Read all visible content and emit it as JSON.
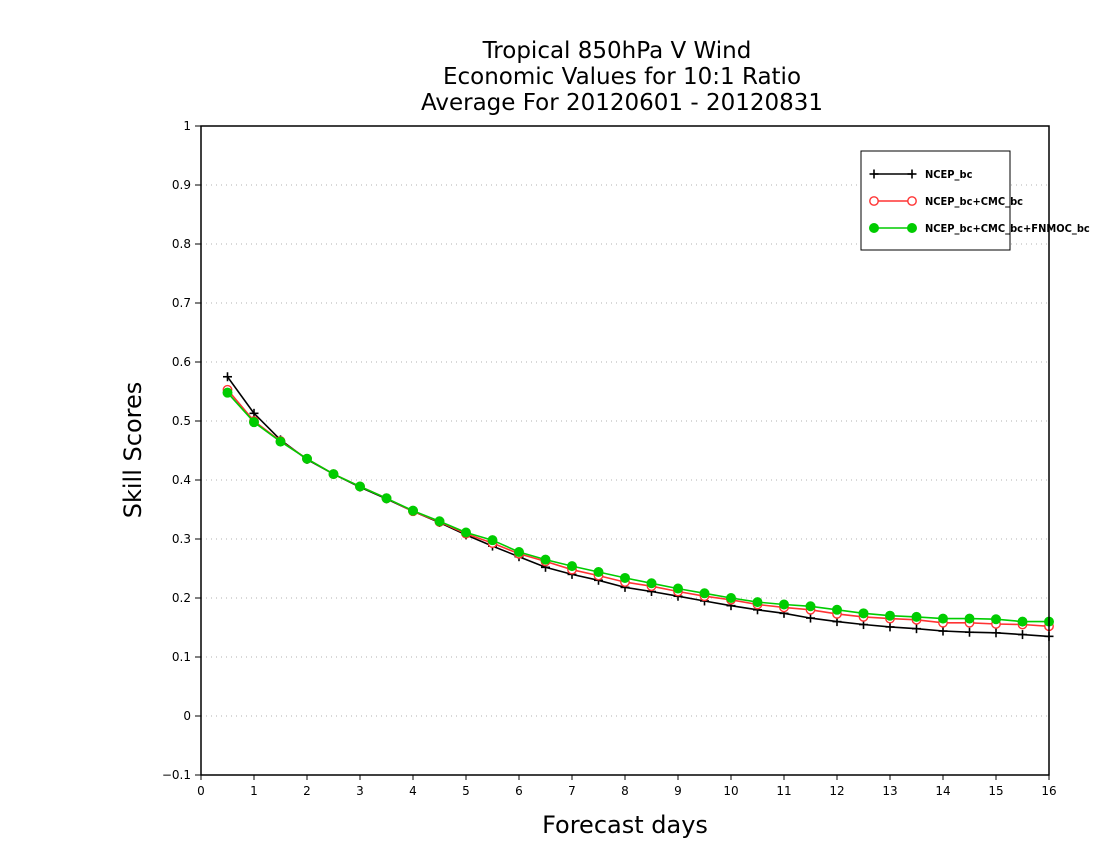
{
  "chart_data": {
    "type": "line",
    "title": [
      "Tropical 850hPa V Wind",
      "Economic Values for 10:1 Ratio",
      "Average For 20120601 - 20120831"
    ],
    "xlabel": "Forecast days",
    "ylabel": "Skill Scores",
    "xlim": [
      0,
      16
    ],
    "ylim": [
      -0.1,
      1
    ],
    "xticks": [
      "0",
      "1",
      "2",
      "3",
      "4",
      "5",
      "6",
      "7",
      "8",
      "9",
      "10",
      "11",
      "12",
      "13",
      "14",
      "15",
      "16"
    ],
    "yticks": [
      "−0.1",
      "0",
      "0.1",
      "0.2",
      "0.3",
      "0.4",
      "0.5",
      "0.6",
      "0.7",
      "0.8",
      "0.9",
      "1"
    ],
    "grid": true,
    "legend_position": "top-right",
    "x": [
      0.5,
      1,
      1.5,
      2,
      2.5,
      3,
      3.5,
      4,
      4.5,
      5,
      5.5,
      6,
      6.5,
      7,
      7.5,
      8,
      8.5,
      9,
      9.5,
      10,
      10.5,
      11,
      11.5,
      12,
      12.5,
      13,
      13.5,
      14,
      14.5,
      15,
      15.5,
      16
    ],
    "series": [
      {
        "name": "NCEP_bc",
        "color": "#000000",
        "marker": "plus",
        "values": [
          0.575,
          0.513,
          0.468,
          0.435,
          0.41,
          0.388,
          0.368,
          0.347,
          0.328,
          0.307,
          0.288,
          0.27,
          0.252,
          0.24,
          0.23,
          0.218,
          0.211,
          0.203,
          0.195,
          0.187,
          0.18,
          0.174,
          0.166,
          0.16,
          0.155,
          0.151,
          0.148,
          0.144,
          0.142,
          0.141,
          0.138,
          0.135
        ]
      },
      {
        "name": "NCEP_bc+CMC_bc",
        "color": "#ff3333",
        "marker": "open-circle",
        "values": [
          0.553,
          0.5,
          0.466,
          0.436,
          0.41,
          0.389,
          0.369,
          0.347,
          0.329,
          0.309,
          0.293,
          0.275,
          0.262,
          0.248,
          0.238,
          0.227,
          0.22,
          0.211,
          0.203,
          0.197,
          0.189,
          0.184,
          0.18,
          0.173,
          0.168,
          0.165,
          0.163,
          0.158,
          0.158,
          0.156,
          0.155,
          0.152
        ]
      },
      {
        "name": "NCEP_bc+CMC_bc+FNMOC_bc",
        "color": "#00cc00",
        "marker": "filled-circle",
        "values": [
          0.548,
          0.498,
          0.465,
          0.436,
          0.41,
          0.389,
          0.369,
          0.348,
          0.33,
          0.311,
          0.298,
          0.278,
          0.265,
          0.254,
          0.244,
          0.234,
          0.225,
          0.216,
          0.208,
          0.2,
          0.193,
          0.189,
          0.186,
          0.18,
          0.174,
          0.17,
          0.168,
          0.165,
          0.165,
          0.164,
          0.16,
          0.16
        ]
      }
    ]
  }
}
